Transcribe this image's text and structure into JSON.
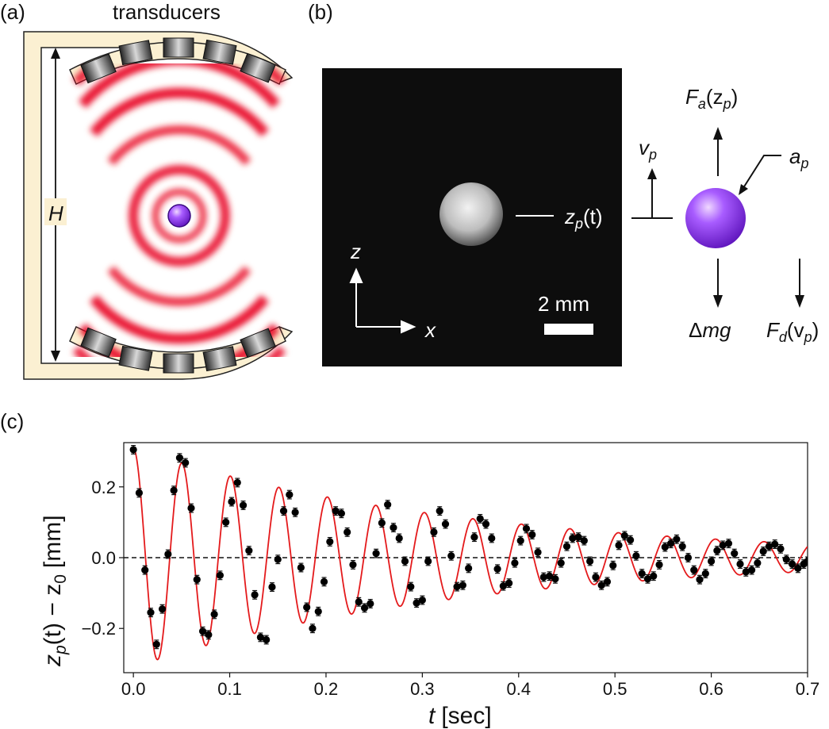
{
  "panels": {
    "a": {
      "label": "(a)",
      "title": "transducers",
      "height_label": "H"
    },
    "b": {
      "label": "(b)",
      "z_axis": "z",
      "x_axis": "x",
      "scale_bar": "2 mm",
      "zp_label": "z",
      "zp_sub": "p",
      "zp_arg": "(t)",
      "vp_label": "v",
      "vp_sub": "p",
      "fa_label": "F",
      "fa_sub": "a",
      "fa_arg_open": "(z",
      "fa_arg_sub": "p",
      "fa_arg_close": ")",
      "ap_label": "a",
      "ap_sub": "p",
      "dmg_delta": "Δ",
      "dmg_label": "mg",
      "fd_label": "F",
      "fd_sub": "d",
      "fd_arg_open": "(v",
      "fd_arg_sub": "p",
      "fd_arg_close": ")"
    },
    "c": {
      "label": "(c)"
    }
  },
  "colors": {
    "fit": "#e41a1c",
    "points": "#000000",
    "sphere": "#8a2be2",
    "frame_fill": "#fbf0d2",
    "wave": "#e8001c"
  },
  "chart_data": {
    "type": "scatter",
    "xlabel_var": "t",
    "xlabel_unit": "[sec]",
    "ylabel_var": "z",
    "ylabel_sub": "p",
    "ylabel_mid": "(t) − z",
    "ylabel_sub2": "0",
    "ylabel_unit": "[mm]",
    "xlim": [
      -0.01,
      0.7
    ],
    "ylim": [
      -0.325,
      0.325
    ],
    "x_ticks": [
      0.0,
      0.1,
      0.2,
      0.3,
      0.4,
      0.5,
      0.6,
      0.7
    ],
    "x_tick_labels": [
      "0.0",
      "0.1",
      "0.2",
      "0.3",
      "0.4",
      "0.5",
      "0.6",
      "0.7"
    ],
    "y_ticks": [
      -0.2,
      0.0,
      0.2
    ],
    "y_tick_labels": [
      "−0.2",
      "0.0",
      "0.2"
    ],
    "zero_line": true,
    "error_bar": 0.012,
    "fit": {
      "form": "A*exp(-t/tau)*cos(2*pi*f*t)",
      "A": 0.31,
      "tau": 0.34,
      "f": 19.85
    },
    "points": [
      [
        0.0,
        0.305
      ],
      [
        0.006,
        0.183
      ],
      [
        0.012,
        -0.035
      ],
      [
        0.018,
        -0.155
      ],
      [
        0.024,
        -0.245
      ],
      [
        0.03,
        -0.145
      ],
      [
        0.036,
        0.01
      ],
      [
        0.042,
        0.19
      ],
      [
        0.048,
        0.282
      ],
      [
        0.054,
        0.268
      ],
      [
        0.06,
        0.14
      ],
      [
        0.066,
        -0.062
      ],
      [
        0.072,
        -0.208
      ],
      [
        0.078,
        -0.218
      ],
      [
        0.084,
        -0.16
      ],
      [
        0.09,
        -0.05
      ],
      [
        0.096,
        0.1
      ],
      [
        0.102,
        0.158
      ],
      [
        0.108,
        0.212
      ],
      [
        0.114,
        0.148
      ],
      [
        0.12,
        0.02
      ],
      [
        0.126,
        -0.105
      ],
      [
        0.132,
        -0.225
      ],
      [
        0.138,
        -0.232
      ],
      [
        0.144,
        -0.083
      ],
      [
        0.15,
        -0.005
      ],
      [
        0.156,
        0.132
      ],
      [
        0.162,
        0.178
      ],
      [
        0.168,
        0.128
      ],
      [
        0.174,
        -0.028
      ],
      [
        0.18,
        -0.14
      ],
      [
        0.186,
        -0.2
      ],
      [
        0.192,
        -0.152
      ],
      [
        0.198,
        -0.068
      ],
      [
        0.204,
        0.045
      ],
      [
        0.21,
        0.132
      ],
      [
        0.216,
        0.125
      ],
      [
        0.222,
        0.072
      ],
      [
        0.228,
        -0.02
      ],
      [
        0.234,
        -0.125
      ],
      [
        0.24,
        -0.142
      ],
      [
        0.246,
        -0.13
      ],
      [
        0.252,
        0.012
      ],
      [
        0.258,
        0.098
      ],
      [
        0.264,
        0.15
      ],
      [
        0.27,
        0.085
      ],
      [
        0.276,
        0.055
      ],
      [
        0.282,
        -0.01
      ],
      [
        0.288,
        -0.082
      ],
      [
        0.294,
        -0.128
      ],
      [
        0.3,
        -0.12
      ],
      [
        0.306,
        -0.01
      ],
      [
        0.312,
        0.072
      ],
      [
        0.318,
        0.132
      ],
      [
        0.324,
        0.095
      ],
      [
        0.33,
        0.005
      ],
      [
        0.336,
        -0.082
      ],
      [
        0.342,
        -0.078
      ],
      [
        0.348,
        -0.03
      ],
      [
        0.354,
        0.058
      ],
      [
        0.36,
        0.11
      ],
      [
        0.366,
        0.095
      ],
      [
        0.372,
        0.055
      ],
      [
        0.378,
        -0.032
      ],
      [
        0.384,
        -0.08
      ],
      [
        0.39,
        -0.072
      ],
      [
        0.396,
        -0.015
      ],
      [
        0.402,
        0.048
      ],
      [
        0.408,
        0.082
      ],
      [
        0.414,
        0.065
      ],
      [
        0.42,
        0.015
      ],
      [
        0.426,
        -0.055
      ],
      [
        0.432,
        -0.052
      ],
      [
        0.438,
        -0.06
      ],
      [
        0.444,
        -0.015
      ],
      [
        0.45,
        0.032
      ],
      [
        0.456,
        0.055
      ],
      [
        0.462,
        0.058
      ],
      [
        0.468,
        0.048
      ],
      [
        0.474,
        -0.01
      ],
      [
        0.48,
        -0.055
      ],
      [
        0.486,
        -0.078
      ],
      [
        0.492,
        -0.068
      ],
      [
        0.498,
        -0.022
      ],
      [
        0.504,
        0.035
      ],
      [
        0.51,
        0.062
      ],
      [
        0.516,
        0.05
      ],
      [
        0.522,
        0.005
      ],
      [
        0.528,
        -0.045
      ],
      [
        0.534,
        -0.06
      ],
      [
        0.54,
        -0.052
      ],
      [
        0.546,
        -0.02
      ],
      [
        0.552,
        0.03
      ],
      [
        0.558,
        0.04
      ],
      [
        0.564,
        0.052
      ],
      [
        0.57,
        0.032
      ],
      [
        0.576,
        0.0
      ],
      [
        0.582,
        -0.035
      ],
      [
        0.588,
        -0.062
      ],
      [
        0.594,
        -0.045
      ],
      [
        0.6,
        -0.01
      ],
      [
        0.606,
        0.02
      ],
      [
        0.612,
        0.035
      ],
      [
        0.618,
        0.04
      ],
      [
        0.624,
        0.012
      ],
      [
        0.63,
        -0.018
      ],
      [
        0.636,
        -0.04
      ],
      [
        0.642,
        -0.035
      ],
      [
        0.648,
        -0.015
      ],
      [
        0.654,
        0.018
      ],
      [
        0.66,
        0.032
      ],
      [
        0.666,
        0.038
      ],
      [
        0.672,
        0.025
      ],
      [
        0.678,
        -0.005
      ],
      [
        0.684,
        -0.018
      ],
      [
        0.69,
        -0.03
      ],
      [
        0.696,
        -0.018
      ],
      [
        0.7,
        -0.01
      ]
    ]
  }
}
